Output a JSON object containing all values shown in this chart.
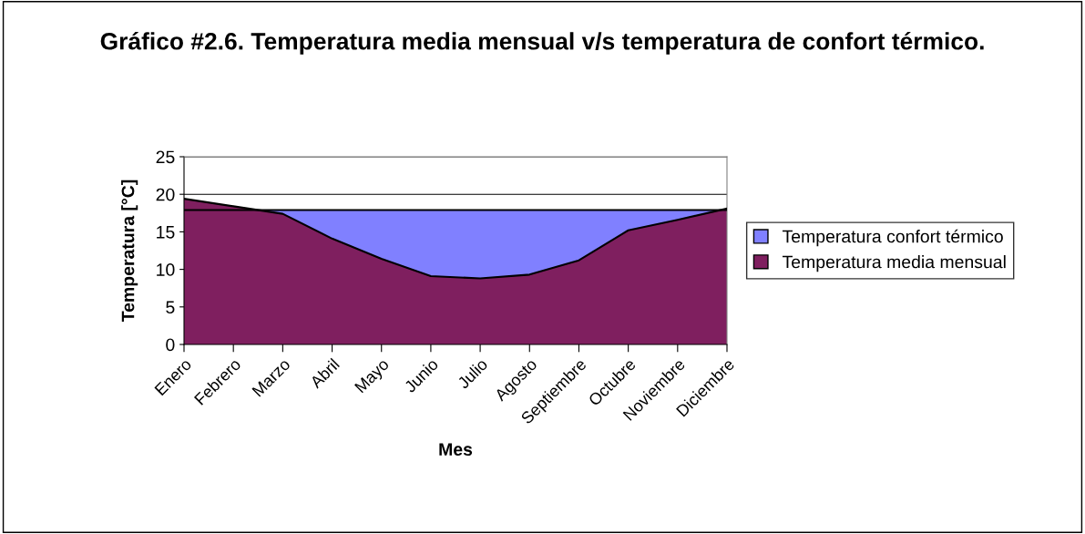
{
  "chart_data": {
    "type": "area",
    "title": "Gráfico #2.6. Temperatura media mensual v/s temperatura de confort térmico.",
    "xlabel": "Mes",
    "ylabel": "Temperatura [°C]",
    "categories": [
      "Enero",
      "Febrero",
      "Marzo",
      "Abril",
      "Mayo",
      "Junio",
      "Julio",
      "Agosto",
      "Septiembre",
      "Octubre",
      "Noviembre",
      "Diciembre"
    ],
    "series": [
      {
        "name": "Temperatura confort térmico",
        "color": "#8080ff",
        "values": [
          17.9,
          17.9,
          17.9,
          17.9,
          17.9,
          17.9,
          17.9,
          17.9,
          17.9,
          17.9,
          17.9,
          17.9
        ]
      },
      {
        "name": "Temperatura media mensual",
        "color": "#7f1f5f",
        "values": [
          19.4,
          18.4,
          17.4,
          14.1,
          11.4,
          9.1,
          8.8,
          9.3,
          11.2,
          15.2,
          16.6,
          18.1
        ]
      }
    ],
    "ylim": [
      0,
      25
    ],
    "yticks": [
      0,
      5,
      10,
      15,
      20,
      25
    ],
    "grid": "y",
    "legend": "right"
  }
}
